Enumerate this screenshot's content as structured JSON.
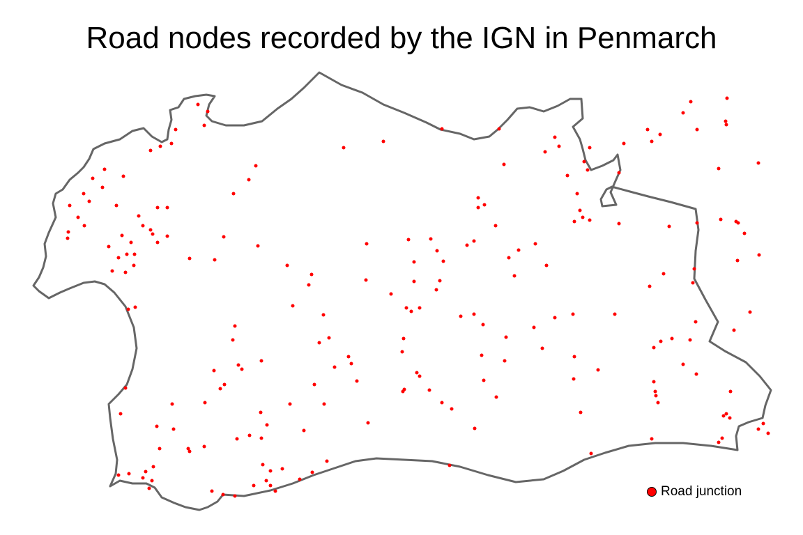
{
  "title": "Road nodes recorded by the IGN in Penmarch",
  "legend": {
    "label": "Road junction",
    "color": "#ff0000"
  },
  "colors": {
    "boundary": "#666666",
    "node": "#ff0000"
  }
}
